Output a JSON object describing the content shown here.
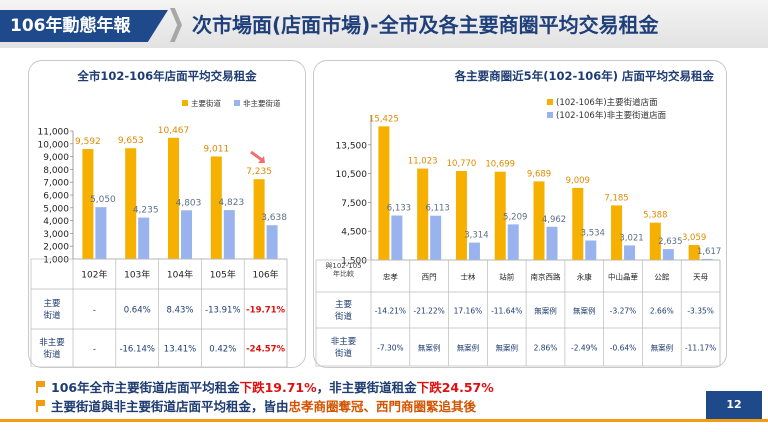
{
  "header": {
    "badge": "106年動態年報",
    "title": "次市場面(店面市場)-全市及各主要商圈平均交易租金"
  },
  "left": {
    "table_row_labels": [
      [
        "主要",
        "街道"
      ],
      [
        "非主要",
        "街道"
      ]
    ],
    "main_changes": [
      "-",
      "0.64%",
      "8.43%",
      "-13.91%",
      "-19.71%"
    ],
    "non_changes": [
      "-",
      "-16.14%",
      "13.41%",
      "0.42%",
      "-24.57%"
    ]
  },
  "right": {
    "table_header": [
      "與102-105",
      "年比較"
    ],
    "table_row_labels": [
      [
        "主要",
        "街道"
      ],
      [
        "非主要",
        "街道"
      ]
    ],
    "main_changes": [
      "-14.21%",
      "-21.22%",
      "17.16%",
      "-11.64%",
      "無案例",
      "無案例",
      "-3.27%",
      "2.66%",
      "-3.35%"
    ],
    "non_changes": [
      "-7.30%",
      "無案例",
      "無案例",
      "無案例",
      "2.86%",
      "-2.49%",
      "-0.64%",
      "無案例",
      "-11.17%"
    ]
  },
  "bottom": {
    "line1_a": "106年全市主要街道店面平均租金",
    "line1_b": "下跌19.71%",
    "line1_c": "，非主要街道租金",
    "line1_d": "下跌24.57%",
    "line2_a": "主要街道與非主要街道店面平均租金，皆由",
    "line2_b": "忠孝商圈奪冠、西門商圈緊追其後"
  },
  "page_number": "12",
  "colors": {
    "main": "#f5b000",
    "non": "#99b3ee",
    "main_label": "#e08a00",
    "non_label": "#5a6f8c",
    "header_blue": "#1e4a8c",
    "red": "#e01010"
  },
  "chart_data": [
    {
      "type": "bar",
      "title": "全市102-106年店面平均交易租金",
      "categories": [
        "102年",
        "103年",
        "104年",
        "105年",
        "106年"
      ],
      "series": [
        {
          "name": "主要街道",
          "values": [
            9592,
            9653,
            10467,
            9011,
            7235
          ],
          "labels": [
            "9,592",
            "9,653",
            "10,467",
            "9,011",
            "7,235"
          ]
        },
        {
          "name": "非主要街道",
          "values": [
            5050,
            4235,
            4803,
            4823,
            3638
          ],
          "labels": [
            "5,050",
            "4,235",
            "4,803",
            "4,823",
            "3,638"
          ]
        }
      ],
      "ylim": [
        1000,
        11000
      ],
      "yticks": [
        1000,
        2000,
        3000,
        4000,
        5000,
        6000,
        7000,
        8000,
        9000,
        10000,
        11000
      ],
      "yticklabels": [
        "1,000",
        "2,000",
        "3,000",
        "4,000",
        "5,000",
        "6,000",
        "7,000",
        "8,000",
        "9,000",
        "10,000",
        "11,000"
      ],
      "legend": "top-right"
    },
    {
      "type": "bar",
      "title": "各主要商圈近5年(102-106年) 店面平均交易租金",
      "categories": [
        "忠孝",
        "西門",
        "士林",
        "站前",
        "南京西路",
        "永康",
        "中山晶華",
        "公館",
        "天母"
      ],
      "series": [
        {
          "name": "(102-106年)主要街道店面",
          "values": [
            15425,
            11023,
            10770,
            10699,
            9689,
            9009,
            7185,
            5388,
            3059
          ],
          "labels": [
            "15,425",
            "11,023",
            "10,770",
            "10,699",
            "9,689",
            "9,009",
            "7,185",
            "5,388",
            "3,059"
          ]
        },
        {
          "name": "(102-106年)非主要街道店面",
          "values": [
            6133,
            6113,
            3314,
            5209,
            4962,
            3534,
            3021,
            2635,
            1617
          ],
          "labels": [
            "6,133",
            "6,113",
            "3,314",
            "5,209",
            "4,962",
            "3,534",
            "3,021",
            "2,635",
            "1,617"
          ]
        }
      ],
      "ylim": [
        1500,
        16500
      ],
      "yticks": [
        1500,
        4500,
        7500,
        10500,
        13500
      ],
      "yticklabels": [
        "1,500",
        "4,500",
        "7,500",
        "10,500",
        "13,500"
      ],
      "legend": "top-right"
    }
  ]
}
